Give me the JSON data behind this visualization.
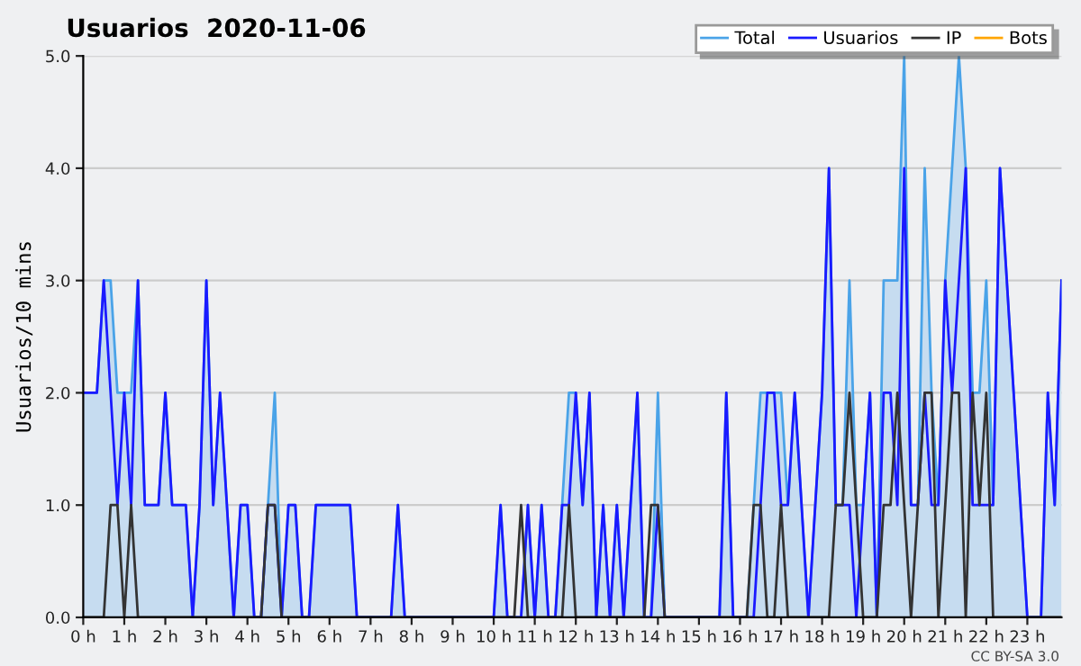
{
  "chart_data": {
    "type": "line",
    "title": "Usuarios  2020-11-06",
    "ylabel": "Usuarios/10 mins",
    "annotations": [
      "CC BY-SA 3.0"
    ],
    "x": [
      0,
      0.1667,
      0.3333,
      0.5,
      0.6667,
      0.8333,
      1,
      1.1667,
      1.3333,
      1.5,
      1.6667,
      1.8333,
      2,
      2.1667,
      2.3333,
      2.5,
      2.6667,
      2.8333,
      3,
      3.1667,
      3.3333,
      3.5,
      3.6667,
      3.8333,
      4,
      4.1667,
      4.3333,
      4.5,
      4.6667,
      4.8333,
      5,
      5.1667,
      5.3333,
      5.5,
      5.6667,
      5.8333,
      6,
      6.1667,
      6.3333,
      6.5,
      6.6667,
      6.8333,
      7,
      7.1667,
      7.3333,
      7.5,
      7.6667,
      7.8333,
      8,
      8.1667,
      8.3333,
      8.5,
      8.6667,
      8.8333,
      9,
      9.1667,
      9.3333,
      9.5,
      9.6667,
      9.8333,
      10,
      10.1667,
      10.3333,
      10.5,
      10.6667,
      10.8333,
      11,
      11.1667,
      11.3333,
      11.5,
      11.6667,
      11.8333,
      12,
      12.1667,
      12.3333,
      12.5,
      12.6667,
      12.8333,
      13,
      13.1667,
      13.3333,
      13.5,
      13.6667,
      13.8333,
      14,
      14.1667,
      14.3333,
      14.5,
      14.6667,
      14.8333,
      15,
      15.1667,
      15.3333,
      15.5,
      15.6667,
      15.8333,
      16,
      16.1667,
      16.3333,
      16.5,
      16.6667,
      16.8333,
      17,
      17.1667,
      17.3333,
      17.5,
      17.6667,
      17.8333,
      18,
      18.1667,
      18.3333,
      18.5,
      18.6667,
      18.8333,
      19,
      19.1667,
      19.3333,
      19.5,
      19.6667,
      19.8333,
      20,
      20.1667,
      20.3333,
      20.5,
      20.6667,
      20.8333,
      21,
      21.1667,
      21.3333,
      21.5,
      21.6667,
      21.8333,
      22,
      22.1667,
      22.3333,
      22.5,
      22.6667,
      22.8333,
      23,
      23.1667,
      23.3333,
      23.5,
      23.6667,
      23.8333
    ],
    "series": [
      {
        "name": "Total",
        "type": "area",
        "color": "#4aa3e8",
        "values": [
          2,
          2,
          2,
          3,
          3,
          2,
          2,
          2,
          3,
          1,
          1,
          1,
          2,
          1,
          1,
          1,
          0,
          1,
          3,
          1,
          2,
          1,
          0,
          1,
          1,
          0,
          0,
          1,
          2,
          0,
          1,
          1,
          0,
          0,
          1,
          1,
          1,
          1,
          1,
          1,
          0,
          0,
          0,
          0,
          0,
          0,
          1,
          0,
          0,
          0,
          0,
          0,
          0,
          0,
          0,
          0,
          0,
          0,
          0,
          0,
          0,
          1,
          0,
          0,
          0,
          1,
          0,
          1,
          0,
          0,
          1,
          2,
          2,
          1,
          2,
          0,
          1,
          0,
          1,
          0,
          1,
          2,
          0,
          0,
          2,
          0,
          0,
          0,
          0,
          0,
          0,
          0,
          0,
          0,
          2,
          0,
          0,
          0,
          1,
          2,
          2,
          2,
          2,
          1,
          2,
          1,
          0,
          1,
          2,
          4,
          1,
          1,
          3,
          1,
          1,
          2,
          0,
          3,
          3,
          3,
          5,
          1,
          1,
          4,
          2,
          1,
          3,
          4,
          5,
          4,
          2,
          2,
          3,
          1,
          4,
          3,
          2,
          1,
          0,
          0,
          0,
          2,
          1,
          3
        ]
      },
      {
        "name": "Usuarios",
        "color": "#1a1aff",
        "values": [
          2,
          2,
          2,
          3,
          2,
          1,
          2,
          1,
          3,
          1,
          1,
          1,
          2,
          1,
          1,
          1,
          0,
          1,
          3,
          1,
          2,
          1,
          0,
          1,
          1,
          0,
          0,
          1,
          1,
          0,
          1,
          1,
          0,
          0,
          1,
          1,
          1,
          1,
          1,
          1,
          0,
          0,
          0,
          0,
          0,
          0,
          1,
          0,
          0,
          0,
          0,
          0,
          0,
          0,
          0,
          0,
          0,
          0,
          0,
          0,
          0,
          1,
          0,
          0,
          0,
          1,
          0,
          1,
          0,
          0,
          1,
          1,
          2,
          1,
          2,
          0,
          1,
          0,
          1,
          0,
          1,
          2,
          0,
          0,
          1,
          0,
          0,
          0,
          0,
          0,
          0,
          0,
          0,
          0,
          2,
          0,
          0,
          0,
          0,
          1,
          2,
          2,
          1,
          1,
          2,
          1,
          0,
          1,
          2,
          4,
          1,
          1,
          1,
          0,
          1,
          2,
          0,
          2,
          2,
          1,
          4,
          1,
          1,
          2,
          1,
          1,
          3,
          2,
          3,
          4,
          1,
          1,
          1,
          1,
          4,
          3,
          2,
          1,
          0,
          0,
          0,
          2,
          1,
          3
        ]
      },
      {
        "name": "IP",
        "color": "#333333",
        "values": [
          0,
          0,
          0,
          0,
          1,
          1,
          0,
          1,
          0,
          0,
          0,
          0,
          0,
          0,
          0,
          0,
          0,
          0,
          0,
          0,
          0,
          0,
          0,
          0,
          0,
          0,
          0,
          1,
          1,
          0,
          0,
          0,
          0,
          0,
          0,
          0,
          0,
          0,
          0,
          0,
          0,
          0,
          0,
          0,
          0,
          0,
          0,
          0,
          0,
          0,
          0,
          0,
          0,
          0,
          0,
          0,
          0,
          0,
          0,
          0,
          0,
          0,
          0,
          0,
          1,
          0,
          0,
          0,
          0,
          0,
          0,
          1,
          0,
          0,
          0,
          0,
          0,
          0,
          0,
          0,
          0,
          0,
          0,
          1,
          1,
          0,
          0,
          0,
          0,
          0,
          0,
          0,
          0,
          0,
          0,
          0,
          0,
          0,
          1,
          1,
          0,
          0,
          1,
          0,
          0,
          0,
          0,
          0,
          0,
          0,
          1,
          1,
          2,
          1,
          0,
          0,
          0,
          1,
          1,
          2,
          1,
          0,
          1,
          2,
          2,
          0,
          1,
          2,
          2,
          0,
          2,
          1,
          2,
          0,
          0,
          0,
          0,
          0,
          0,
          0,
          0,
          0,
          0,
          0
        ]
      },
      {
        "name": "Bots",
        "color": "#ffa500",
        "values": [
          null,
          null,
          null,
          null,
          null,
          null,
          null,
          null,
          null,
          null,
          null,
          null,
          null,
          null,
          null,
          null,
          null,
          null,
          null,
          null,
          null,
          null,
          null,
          null,
          null,
          null,
          null,
          null,
          null,
          null,
          null,
          null,
          null,
          null,
          null,
          null,
          null,
          null,
          null,
          null,
          null,
          null,
          null,
          null,
          null,
          null,
          null,
          null,
          null,
          null,
          null,
          null,
          null,
          null,
          null,
          null,
          null,
          null,
          null,
          null,
          null,
          null,
          null,
          null,
          null,
          null,
          null,
          null,
          null,
          null,
          null,
          null,
          null,
          null,
          null,
          null,
          null,
          null,
          null,
          null,
          null,
          null,
          null,
          null,
          null,
          null,
          null,
          null,
          null,
          null,
          null,
          null,
          null,
          null,
          null,
          null,
          null,
          null,
          null,
          null,
          null,
          null,
          null,
          null,
          null,
          null,
          null,
          null,
          null,
          null,
          null,
          null,
          null,
          null,
          null,
          null,
          null,
          null,
          null,
          null,
          null,
          null,
          null,
          null,
          null,
          null,
          null,
          null,
          null,
          null,
          null,
          null,
          null,
          null,
          null,
          null,
          null,
          null,
          null,
          null,
          null,
          null,
          null,
          null
        ]
      }
    ],
    "xlim": [
      0,
      23.8333
    ],
    "xticks": [
      {
        "value": 0,
        "label": "0 h"
      },
      {
        "value": 1,
        "label": "1 h"
      },
      {
        "value": 2,
        "label": "2 h"
      },
      {
        "value": 3,
        "label": "3 h"
      },
      {
        "value": 4,
        "label": "4 h"
      },
      {
        "value": 5,
        "label": "5 h"
      },
      {
        "value": 6,
        "label": "6 h"
      },
      {
        "value": 7,
        "label": "7 h"
      },
      {
        "value": 8,
        "label": "8 h"
      },
      {
        "value": 9,
        "label": "9 h"
      },
      {
        "value": 10,
        "label": "10 h"
      },
      {
        "value": 11,
        "label": "11 h"
      },
      {
        "value": 12,
        "label": "12 h"
      },
      {
        "value": 13,
        "label": "13 h"
      },
      {
        "value": 14,
        "label": "14 h"
      },
      {
        "value": 15,
        "label": "15 h"
      },
      {
        "value": 16,
        "label": "16 h"
      },
      {
        "value": 17,
        "label": "17 h"
      },
      {
        "value": 18,
        "label": "18 h"
      },
      {
        "value": 19,
        "label": "19 h"
      },
      {
        "value": 20,
        "label": "20 h"
      },
      {
        "value": 21,
        "label": "21 h"
      },
      {
        "value": 22,
        "label": "22 h"
      },
      {
        "value": 23,
        "label": "23 h"
      }
    ],
    "ylim": [
      0,
      5
    ],
    "yticks": [
      {
        "value": 0,
        "label": "0.0"
      },
      {
        "value": 1,
        "label": "1.0"
      },
      {
        "value": 2,
        "label": "2.0"
      },
      {
        "value": 3,
        "label": "3.0"
      },
      {
        "value": 4,
        "label": "4.0"
      },
      {
        "value": 5,
        "label": "5.0"
      }
    ],
    "grid": "y",
    "legend": "top right"
  }
}
